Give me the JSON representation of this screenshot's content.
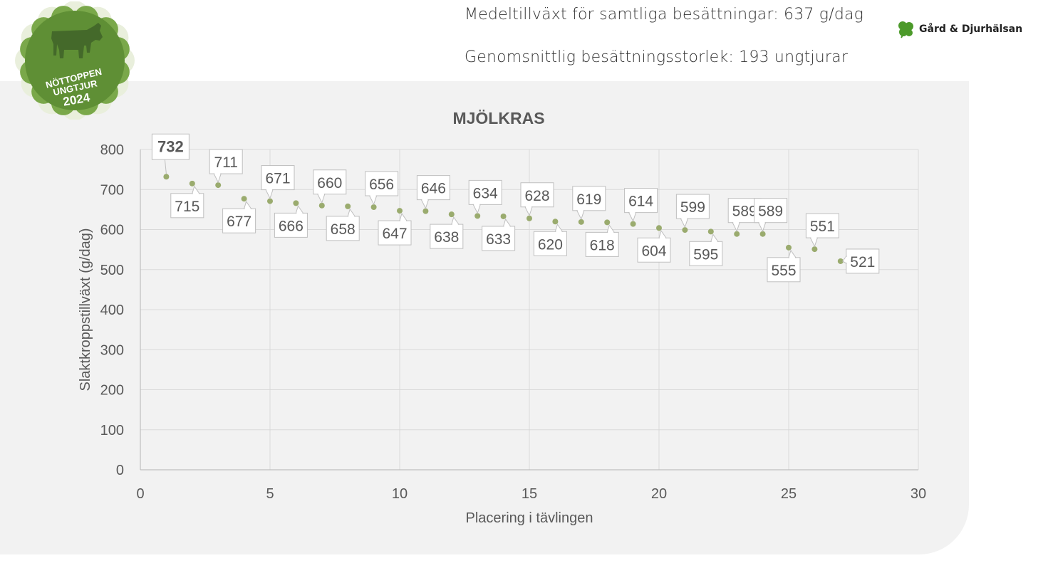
{
  "header": {
    "avg_growth_text": "Medeltillväxt för samtliga besättningar: 637 g/dag",
    "avg_herd_text": "Genomsnittlig besättningsstorlek: 193 ungtjurar",
    "brand_name": "Gård & Djurhälsan"
  },
  "badge": {
    "line1": "NÖTTOPPEN",
    "line2": "UNGTJUR",
    "year": "2024",
    "color": "#5f8f35"
  },
  "chart_data": {
    "type": "scatter",
    "title": "MJÖLKRAS",
    "xlabel": "Placering i tävlingen",
    "ylabel": "Slaktkroppstillväxt (g/dag)",
    "xlim": [
      0,
      30
    ],
    "ylim": [
      0,
      800
    ],
    "xticks": [
      0,
      5,
      10,
      15,
      20,
      25,
      30
    ],
    "yticks": [
      0,
      100,
      200,
      300,
      400,
      500,
      600,
      700,
      800
    ],
    "grid": true,
    "marker_color": "#9aab6e",
    "points": [
      {
        "x": 1,
        "y": 732,
        "label": "732",
        "bold": true
      },
      {
        "x": 2,
        "y": 715,
        "label": "715"
      },
      {
        "x": 3,
        "y": 711,
        "label": "711"
      },
      {
        "x": 4,
        "y": 677,
        "label": "677"
      },
      {
        "x": 5,
        "y": 671,
        "label": "671"
      },
      {
        "x": 6,
        "y": 666,
        "label": "666"
      },
      {
        "x": 7,
        "y": 660,
        "label": "660"
      },
      {
        "x": 8,
        "y": 658,
        "label": "658"
      },
      {
        "x": 9,
        "y": 656,
        "label": "656"
      },
      {
        "x": 10,
        "y": 647,
        "label": "647"
      },
      {
        "x": 11,
        "y": 646,
        "label": "646"
      },
      {
        "x": 12,
        "y": 638,
        "label": "638"
      },
      {
        "x": 13,
        "y": 634,
        "label": "634"
      },
      {
        "x": 14,
        "y": 633,
        "label": "633"
      },
      {
        "x": 15,
        "y": 628,
        "label": "628"
      },
      {
        "x": 16,
        "y": 620,
        "label": "620"
      },
      {
        "x": 17,
        "y": 619,
        "label": "619"
      },
      {
        "x": 18,
        "y": 618,
        "label": "618"
      },
      {
        "x": 19,
        "y": 614,
        "label": "614"
      },
      {
        "x": 20,
        "y": 604,
        "label": "604"
      },
      {
        "x": 21,
        "y": 599,
        "label": "599"
      },
      {
        "x": 22,
        "y": 595,
        "label": "595"
      },
      {
        "x": 23,
        "y": 589,
        "label": "589"
      },
      {
        "x": 24,
        "y": 589,
        "label": "589"
      },
      {
        "x": 25,
        "y": 555,
        "label": "555"
      },
      {
        "x": 26,
        "y": 551,
        "label": "551"
      },
      {
        "x": 27,
        "y": 521,
        "label": "521"
      }
    ]
  }
}
